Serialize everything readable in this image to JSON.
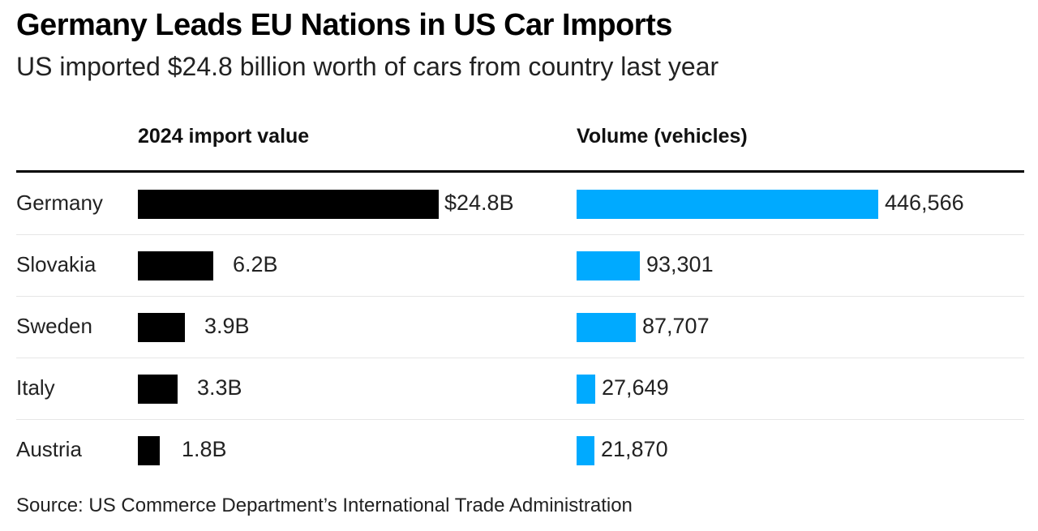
{
  "title": "Germany Leads EU Nations in US Car Imports",
  "subtitle": "US imported $24.8 billion worth of cars from country last year",
  "source": "Source: US Commerce Department’s International Trade Administration",
  "colors": {
    "value_bar": "#000000",
    "volume_bar": "#00aaff"
  },
  "chart_data": [
    {
      "type": "bar",
      "orientation": "horizontal",
      "title": "2024 import value",
      "categories": [
        "Germany",
        "Slovakia",
        "Sweden",
        "Italy",
        "Austria"
      ],
      "values": [
        24.8,
        6.2,
        3.9,
        3.3,
        1.8
      ],
      "value_labels": [
        "$24.8B",
        "6.2B",
        "3.9B",
        "3.3B",
        "1.8B"
      ],
      "unit": "billion USD"
    },
    {
      "type": "bar",
      "orientation": "horizontal",
      "title": "Volume (vehicles)",
      "categories": [
        "Germany",
        "Slovakia",
        "Sweden",
        "Italy",
        "Austria"
      ],
      "values": [
        446566,
        93301,
        87707,
        27649,
        21870
      ],
      "value_labels": [
        "446,566",
        "93,301",
        "87,707",
        "27,649",
        "21,870"
      ],
      "unit": "vehicles"
    }
  ]
}
